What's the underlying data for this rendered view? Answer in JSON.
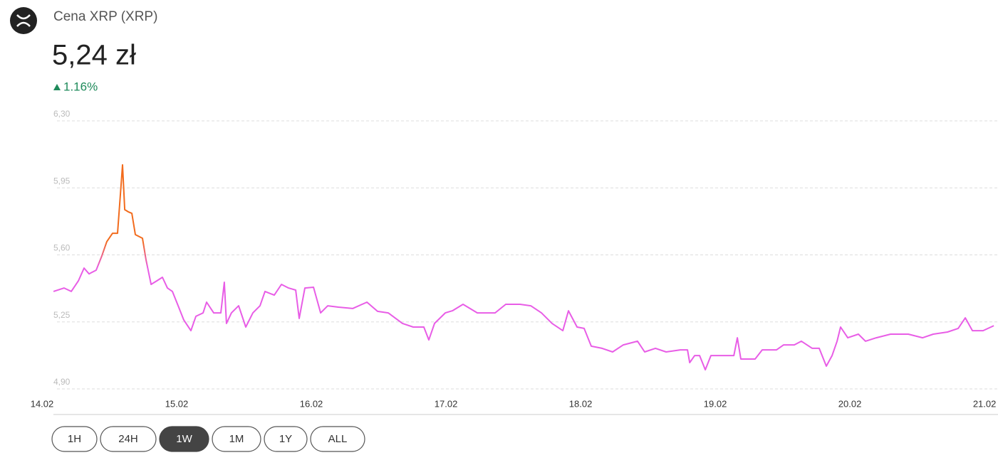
{
  "header": {
    "name": "Cena XRP (XRP)",
    "price": "5,24 zł",
    "change": "1.16%"
  },
  "chart_data": {
    "type": "line",
    "x": [
      14.085,
      14.164,
      14.217,
      14.27,
      14.312,
      14.349,
      14.402,
      14.444,
      14.481,
      14.524,
      14.561,
      14.587,
      14.598,
      14.614,
      14.64,
      14.667,
      14.693,
      14.746,
      14.772,
      14.81,
      14.852,
      14.894,
      14.931,
      14.968,
      15.011,
      15.053,
      15.106,
      15.143,
      15.196,
      15.222,
      15.275,
      15.328,
      15.354,
      15.37,
      15.407,
      15.46,
      15.513,
      15.566,
      15.619,
      15.656,
      15.725,
      15.778,
      15.831,
      15.884,
      15.91,
      15.952,
      16.016,
      16.069,
      16.122,
      16.201,
      16.307,
      16.413,
      16.492,
      16.571,
      16.677,
      16.757,
      16.836,
      16.873,
      16.915,
      16.995,
      17.048,
      17.127,
      17.233,
      17.365,
      17.444,
      17.55,
      17.63,
      17.709,
      17.788,
      17.868,
      17.91,
      17.974,
      18.026,
      18.079,
      18.159,
      18.238,
      18.317,
      18.423,
      18.476,
      18.556,
      18.635,
      18.741,
      18.794,
      18.81,
      18.847,
      18.884,
      18.926,
      18.968,
      19.058,
      19.138,
      19.164,
      19.19,
      19.296,
      19.349,
      19.455,
      19.508,
      19.587,
      19.64,
      19.72,
      19.772,
      19.825,
      19.868,
      19.905,
      19.931,
      19.984,
      20.063,
      20.116,
      20.196,
      20.302,
      20.434,
      20.54,
      20.619,
      20.725,
      20.804,
      20.857,
      20.91,
      20.989,
      21.069
    ],
    "values": [
      5.409,
      5.427,
      5.409,
      5.464,
      5.531,
      5.501,
      5.52,
      5.594,
      5.669,
      5.713,
      5.713,
      5.966,
      6.07,
      5.836,
      5.825,
      5.817,
      5.706,
      5.687,
      5.576,
      5.446,
      5.464,
      5.483,
      5.427,
      5.409,
      5.334,
      5.26,
      5.204,
      5.279,
      5.297,
      5.353,
      5.297,
      5.297,
      5.457,
      5.242,
      5.297,
      5.334,
      5.223,
      5.297,
      5.334,
      5.409,
      5.39,
      5.446,
      5.427,
      5.416,
      5.268,
      5.427,
      5.431,
      5.297,
      5.334,
      5.327,
      5.32,
      5.353,
      5.305,
      5.297,
      5.242,
      5.223,
      5.223,
      5.156,
      5.242,
      5.297,
      5.308,
      5.342,
      5.297,
      5.297,
      5.342,
      5.342,
      5.334,
      5.297,
      5.242,
      5.204,
      5.308,
      5.223,
      5.216,
      5.123,
      5.112,
      5.093,
      5.13,
      5.149,
      5.093,
      5.112,
      5.093,
      5.104,
      5.104,
      5.037,
      5.074,
      5.074,
      5.0,
      5.074,
      5.074,
      5.074,
      5.167,
      5.056,
      5.056,
      5.104,
      5.104,
      5.13,
      5.13,
      5.149,
      5.112,
      5.112,
      5.019,
      5.074,
      5.149,
      5.223,
      5.167,
      5.186,
      5.149,
      5.167,
      5.186,
      5.186,
      5.167,
      5.186,
      5.197,
      5.216,
      5.271,
      5.204,
      5.204,
      5.23
    ],
    "colors": [
      "#f26b1d",
      "#e85de6"
    ],
    "xlim": [
      14,
      21.1
    ],
    "xticks": [
      {
        "value": 14,
        "label": "14.02"
      },
      {
        "value": 15,
        "label": "15.02"
      },
      {
        "value": 16,
        "label": "16.02"
      },
      {
        "value": 17,
        "label": "17.02"
      },
      {
        "value": 18,
        "label": "18.02"
      },
      {
        "value": 19,
        "label": "19.02"
      },
      {
        "value": 20,
        "label": "20.02"
      },
      {
        "value": 21,
        "label": "21.02"
      }
    ],
    "ylim": [
      4.9,
      6.3
    ],
    "yticks": [
      {
        "value": 4.9,
        "label": "4,90"
      },
      {
        "value": 5.25,
        "label": "5,25"
      },
      {
        "value": 5.6,
        "label": "5,60"
      },
      {
        "value": 5.95,
        "label": "5,95"
      },
      {
        "value": 6.3,
        "label": "6,30"
      }
    ],
    "grid": true
  },
  "buttons": [
    "1H",
    "24H",
    "1W",
    "1M",
    "1Y",
    "ALL"
  ],
  "selected": "1W"
}
